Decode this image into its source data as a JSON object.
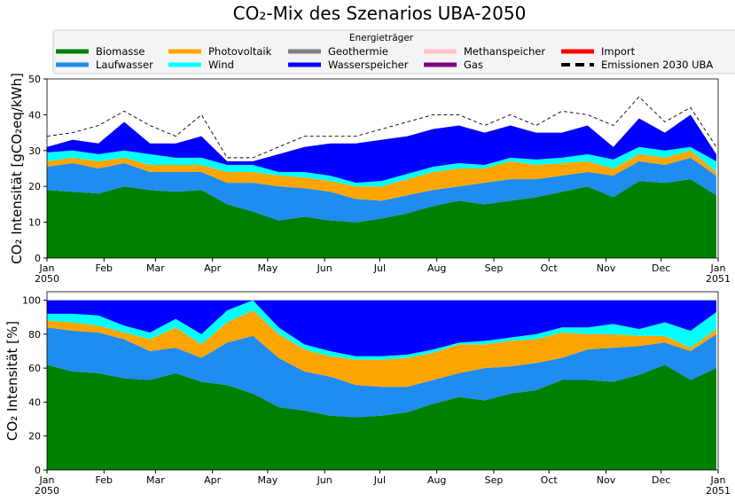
{
  "title": "CO₂-Mix des Szenarios UBA-2050",
  "legend": {
    "title": "Energieträger"
  },
  "chart_data": [
    {
      "type": "area",
      "ylabel": "CO₂ Intensität [gCO₂eq/kWh]",
      "x": [
        0,
        14,
        28,
        42,
        56,
        70,
        84,
        98,
        112,
        126,
        140,
        154,
        168,
        182,
        196,
        210,
        224,
        238,
        252,
        266,
        280,
        294,
        308,
        322,
        336,
        350,
        364
      ],
      "xlim": [
        0,
        365
      ],
      "xticks": [
        {
          "value": 0,
          "label": "Jan\n2050"
        },
        {
          "value": 31,
          "label": "Feb"
        },
        {
          "value": 59,
          "label": "Mar"
        },
        {
          "value": 90,
          "label": "Apr"
        },
        {
          "value": 120,
          "label": "May"
        },
        {
          "value": 151,
          "label": "Jun"
        },
        {
          "value": 181,
          "label": "Jul"
        },
        {
          "value": 212,
          "label": "Aug"
        },
        {
          "value": 243,
          "label": "Sep"
        },
        {
          "value": 273,
          "label": "Oct"
        },
        {
          "value": 304,
          "label": "Nov"
        },
        {
          "value": 334,
          "label": "Dec"
        },
        {
          "value": 365,
          "label": "Jan\n2051"
        }
      ],
      "ylim": [
        0,
        50
      ],
      "yticks": [
        0,
        10,
        20,
        30,
        40,
        50
      ],
      "series": [
        {
          "name": "Biomasse",
          "color": "#008000",
          "values": [
            19,
            18.5,
            18,
            20,
            19,
            18.5,
            19,
            15,
            13,
            10.5,
            11.5,
            10.5,
            10,
            11,
            12.5,
            14.5,
            16,
            15,
            16,
            17,
            18.5,
            20,
            17,
            21.5,
            21,
            22,
            17.5
          ]
        },
        {
          "name": "Laufwasser",
          "color": "#1e8cf0",
          "values": [
            6.5,
            8,
            7,
            6.5,
            5,
            5.5,
            5,
            6,
            8,
            9.5,
            8,
            8,
            6.5,
            5,
            5,
            4.5,
            4,
            6,
            6,
            5,
            4.5,
            4,
            6,
            5.5,
            5,
            6,
            5.5
          ]
        },
        {
          "name": "Photovoltaik",
          "color": "#ffa500",
          "values": [
            1.5,
            1.5,
            2,
            1.5,
            2,
            2,
            2,
            3,
            3,
            3,
            3,
            3,
            3.5,
            4,
            4.5,
            5,
            5,
            4,
            5,
            4,
            3.5,
            3,
            2,
            2,
            2,
            2,
            1
          ]
        },
        {
          "name": "Wind",
          "color": "#00ffff",
          "values": [
            2.5,
            2,
            2,
            2,
            3,
            2,
            2,
            2,
            2,
            1,
            1.5,
            1.5,
            1,
            1.5,
            1.5,
            1.5,
            1.5,
            1,
            1,
            1.5,
            1.5,
            2,
            2.5,
            2,
            2,
            1,
            3
          ]
        },
        {
          "name": "Geothermie",
          "color": "#808080",
          "values": [
            0,
            0,
            0,
            0,
            0,
            0,
            0,
            0,
            0,
            0,
            0,
            0,
            0,
            0,
            0,
            0,
            0,
            0,
            0,
            0,
            0,
            0,
            0,
            0,
            0,
            0,
            0
          ]
        },
        {
          "name": "Wasserspeicher",
          "color": "#0000ff",
          "values": [
            1.5,
            3,
            3,
            8,
            3,
            4,
            6,
            1,
            1,
            5,
            7,
            9,
            11,
            11.5,
            10.5,
            10.5,
            10.5,
            9,
            9,
            7.5,
            7,
            8,
            3.5,
            8,
            5,
            9,
            2
          ]
        },
        {
          "name": "Methanspeicher",
          "color": "#ffc0cb",
          "values": [
            0,
            0,
            0,
            0,
            0,
            0,
            0,
            0,
            0,
            0,
            0,
            0,
            0,
            0,
            0,
            0,
            0,
            0,
            0,
            0,
            0,
            0,
            0,
            0,
            0,
            0,
            0
          ]
        },
        {
          "name": "Gas",
          "color": "#800080",
          "values": [
            0,
            0,
            0,
            0,
            0,
            0,
            0,
            0,
            0,
            0,
            0,
            0,
            0,
            0,
            0,
            0,
            0,
            0,
            0,
            0,
            0,
            0,
            0,
            0,
            0,
            0,
            0
          ]
        },
        {
          "name": "Import",
          "color": "#ff0000",
          "values": [
            0,
            0,
            0,
            0,
            0,
            0,
            0,
            0,
            0,
            0,
            0,
            0,
            0,
            0,
            0,
            0,
            0,
            0,
            0,
            0,
            0,
            0,
            0,
            0,
            0,
            0,
            0
          ]
        },
        {
          "name": "Emissionen 2030 UBA",
          "type": "line",
          "dashed": true,
          "color": "#000000",
          "values": [
            34,
            35,
            37,
            41,
            37,
            34,
            40,
            28,
            28,
            31,
            34,
            34,
            34,
            36,
            38,
            40,
            40,
            37,
            40,
            37,
            41,
            40,
            37,
            45,
            38,
            42,
            31
          ]
        }
      ]
    },
    {
      "type": "area",
      "ylabel": "CO₂ Intensität [%]",
      "x": [
        0,
        14,
        28,
        42,
        56,
        70,
        84,
        98,
        112,
        126,
        140,
        154,
        168,
        182,
        196,
        210,
        224,
        238,
        252,
        266,
        280,
        294,
        308,
        322,
        336,
        350,
        364
      ],
      "xlim": [
        0,
        365
      ],
      "xticks": [
        {
          "value": 0,
          "label": "Jan\n2050"
        },
        {
          "value": 31,
          "label": "Feb"
        },
        {
          "value": 59,
          "label": "Mar"
        },
        {
          "value": 90,
          "label": "Apr"
        },
        {
          "value": 120,
          "label": "May"
        },
        {
          "value": 151,
          "label": "Jun"
        },
        {
          "value": 181,
          "label": "Jul"
        },
        {
          "value": 212,
          "label": "Aug"
        },
        {
          "value": 243,
          "label": "Sep"
        },
        {
          "value": 273,
          "label": "Oct"
        },
        {
          "value": 304,
          "label": "Nov"
        },
        {
          "value": 334,
          "label": "Dec"
        },
        {
          "value": 365,
          "label": "Jan\n2051"
        }
      ],
      "ylim": [
        0,
        105
      ],
      "yticks": [
        0,
        20,
        40,
        60,
        80,
        100
      ],
      "series": [
        {
          "color": "#008000",
          "values": [
            62,
            58,
            57,
            54,
            53,
            57,
            52,
            50,
            45,
            37,
            35,
            32,
            31,
            32,
            34,
            39,
            43,
            41,
            45,
            47,
            53,
            53,
            52,
            56,
            62,
            53,
            60
          ]
        },
        {
          "color": "#1e8cf0",
          "values": [
            22,
            24,
            24,
            23,
            17,
            15,
            14,
            25,
            34,
            29,
            23,
            23,
            19,
            17,
            15,
            14,
            14,
            19,
            16,
            16,
            13,
            18,
            20,
            17,
            13,
            17,
            20
          ]
        },
        {
          "color": "#ffa500",
          "values": [
            4,
            5,
            4,
            4,
            7,
            12,
            8,
            12,
            15,
            14,
            13,
            12,
            15,
            16,
            17,
            16,
            17,
            14,
            15,
            14,
            15,
            9,
            8,
            6,
            4,
            2,
            3
          ]
        },
        {
          "color": "#00ffff",
          "values": [
            4,
            5,
            6,
            4,
            4,
            5,
            6,
            7,
            6,
            4,
            3,
            3,
            2,
            2,
            2,
            2,
            1,
            2,
            2,
            3,
            3,
            4,
            6,
            4,
            8,
            10,
            10
          ]
        },
        {
          "color": "#0000ff",
          "values": [
            8,
            8,
            9,
            15,
            19,
            11,
            20,
            6,
            0,
            16,
            26,
            30,
            33,
            33,
            32,
            29,
            25,
            24,
            22,
            20,
            16,
            16,
            14,
            17,
            13,
            18,
            7
          ]
        }
      ]
    }
  ]
}
